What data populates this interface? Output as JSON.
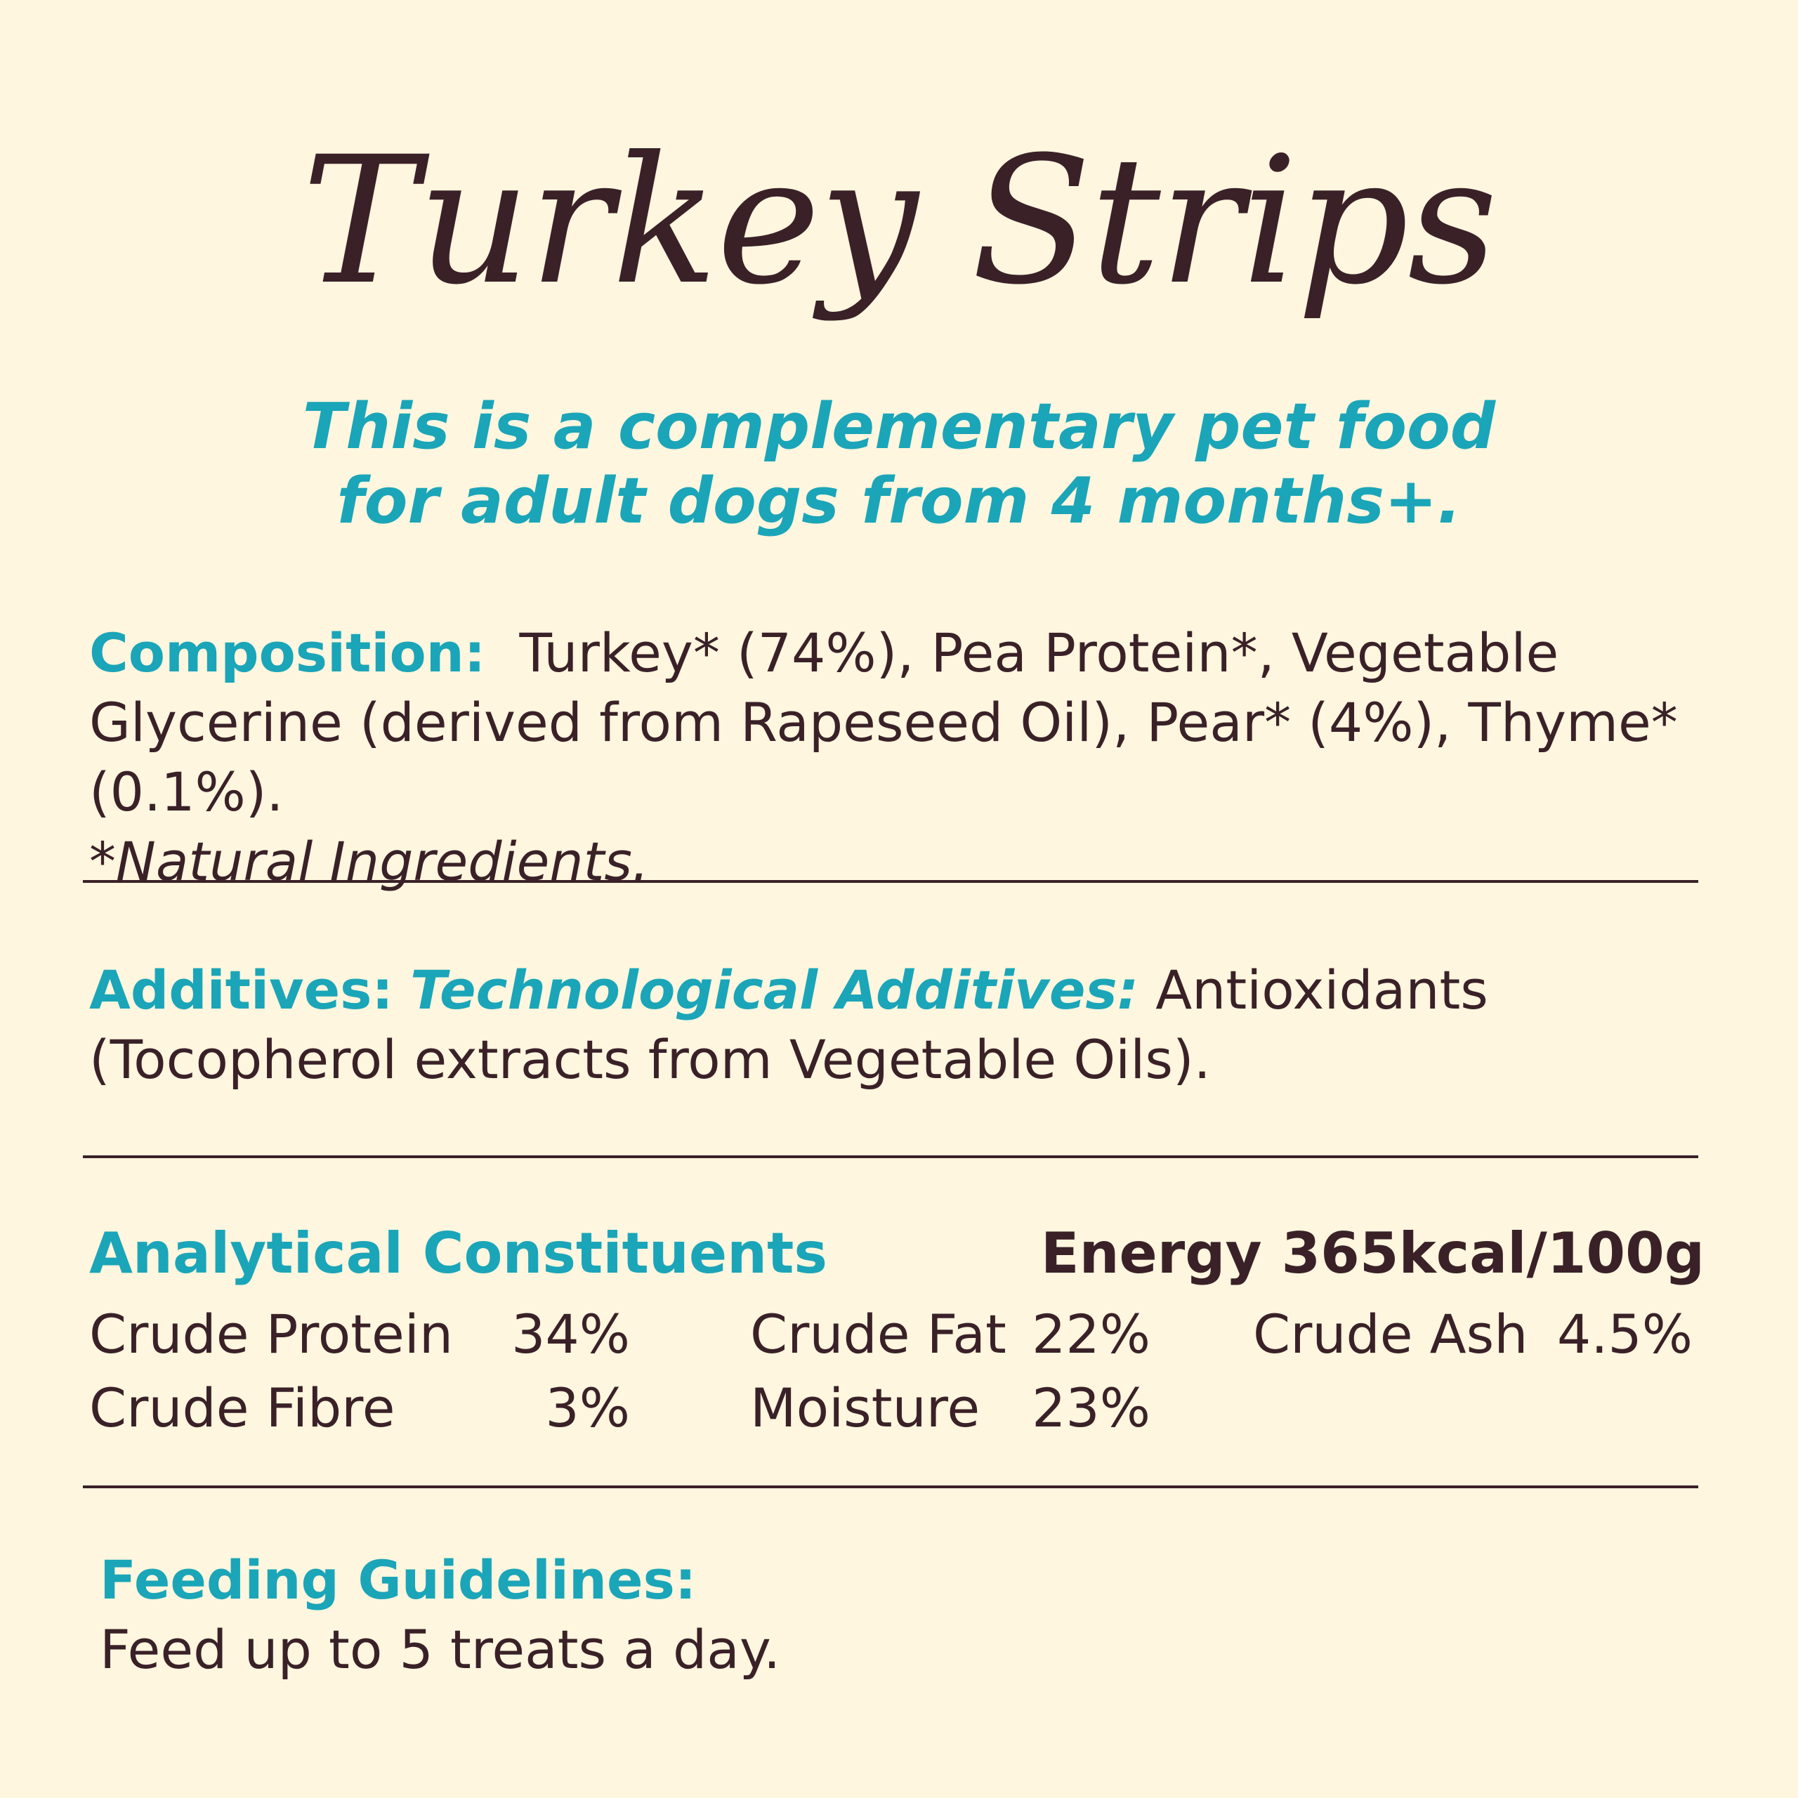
{
  "title": "Turkey Strips",
  "subtitle": {
    "line1": "This is a complementary pet food",
    "line2": "for adult dogs from 4 months+."
  },
  "composition": {
    "label": "Composition:",
    "text": "Turkey* (74%), Pea Protein*, Vegetable Glycerine (derived from Rapeseed Oil), Pear* (4%), Thyme* (0.1%).",
    "note": "*Natural Ingredients."
  },
  "additives": {
    "label": "Additives:",
    "sublabel": "Technological Additives:",
    "text": "Antioxidants (Tocopherol extracts from Vegetable Oils)."
  },
  "analytical": {
    "label": "Analytical Constituents",
    "energy": "Energy 365kcal/100g",
    "items": [
      {
        "name": "Crude Protein",
        "value": "34%"
      },
      {
        "name": "Crude Fat",
        "value": "22%"
      },
      {
        "name": "Crude Ash",
        "value": "4.5%"
      },
      {
        "name": "Crude Fibre",
        "value": "3%"
      },
      {
        "name": "Moisture",
        "value": "23%"
      }
    ]
  },
  "feeding": {
    "label": "Feeding Guidelines:",
    "text": "Feed up to 5 treats a day."
  },
  "colors": {
    "background": "#FEF6DE",
    "text": "#3A2128",
    "accent": "#1BA5B8"
  }
}
